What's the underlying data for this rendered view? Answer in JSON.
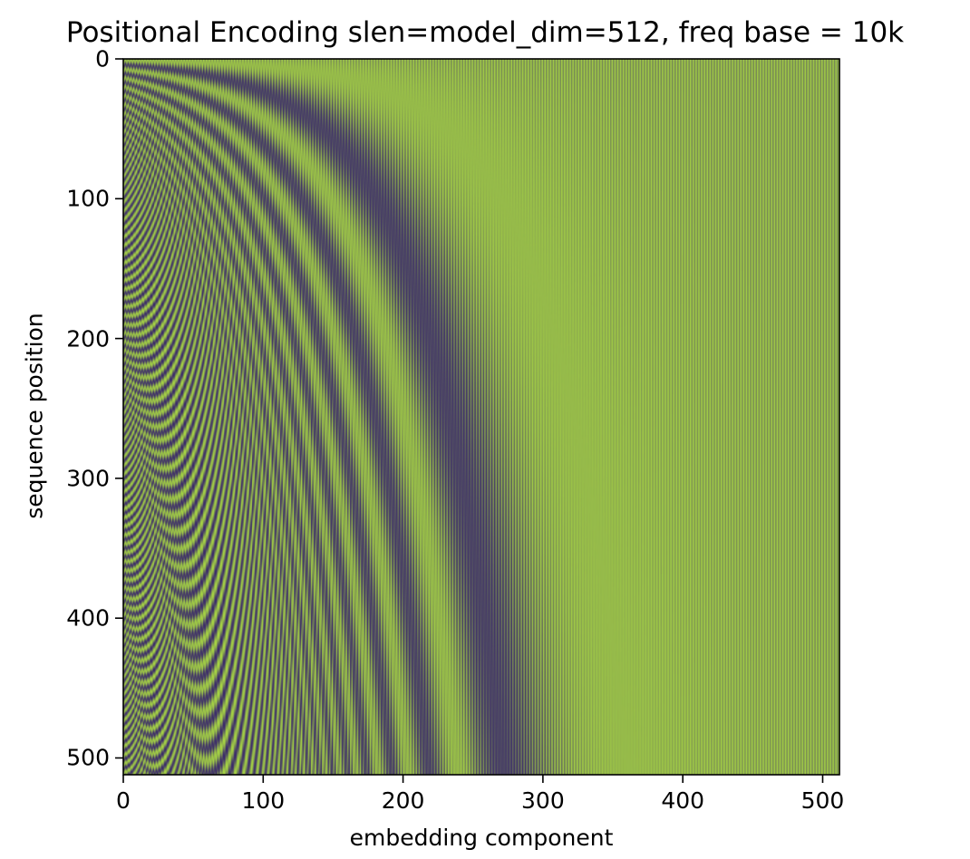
{
  "chart_data": {
    "type": "heatmap",
    "title": "Positional Encoding slen=model_dim=512, freq base = 10k",
    "xlabel": "embedding component",
    "ylabel": "sequence position",
    "x_ticks": [
      0,
      100,
      200,
      300,
      400,
      500
    ],
    "y_ticks": [
      0,
      100,
      200,
      300,
      400,
      500
    ],
    "xlim": [
      0,
      512
    ],
    "ylim": [
      512,
      0
    ],
    "rows": 512,
    "cols": 512,
    "freq_base": 10000,
    "formula": "sin/cos(pos / 10000^(2i/512)) interleaved",
    "colormap": {
      "low": "#3b2a6b",
      "high": "#a6d444"
    }
  }
}
